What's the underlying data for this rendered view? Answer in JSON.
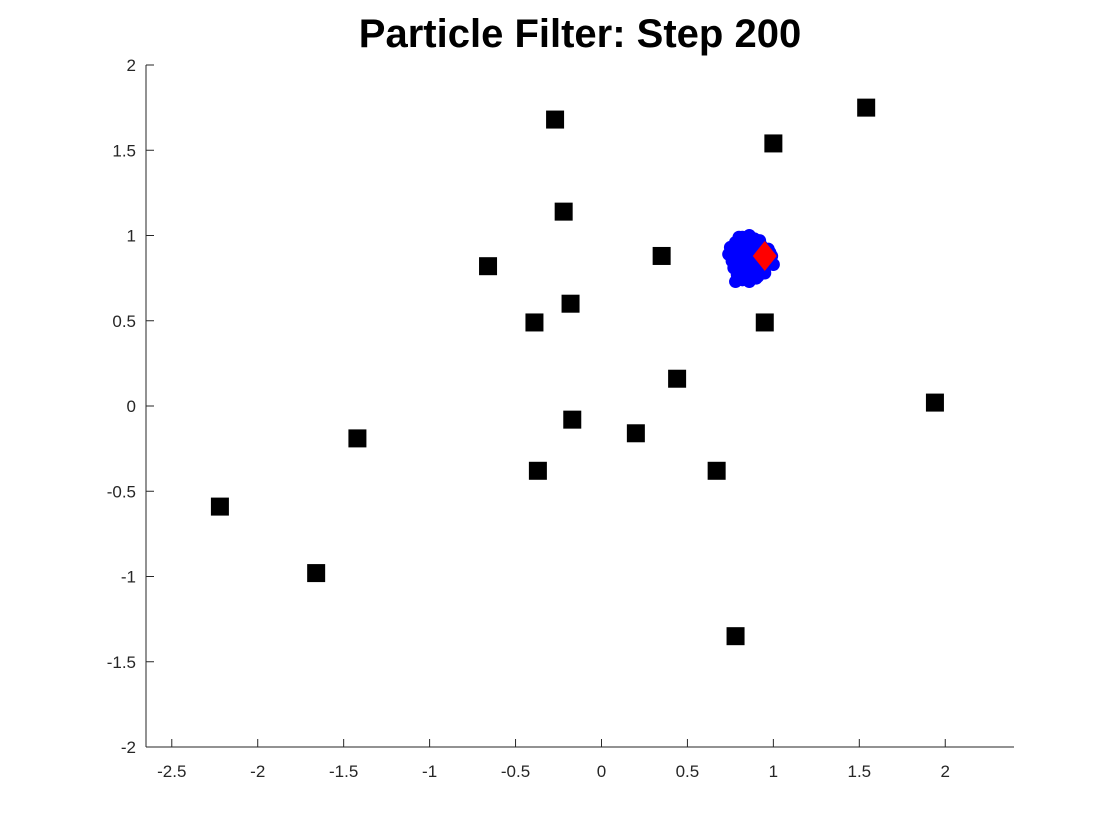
{
  "chart_data": {
    "type": "scatter",
    "title": "Particle Filter: Step 200",
    "xlabel": "",
    "ylabel": "",
    "xlim": [
      -2.65,
      2.4
    ],
    "ylim": [
      -2,
      2
    ],
    "xticks": [
      -2.5,
      -2,
      -1.5,
      -1,
      -0.5,
      0,
      0.5,
      1,
      1.5,
      2
    ],
    "xtick_labels": [
      "-2.5",
      "-2",
      "-1.5",
      "-1",
      "-0.5",
      "0",
      "0.5",
      "1",
      "1.5",
      "2"
    ],
    "yticks": [
      -2,
      -1.5,
      -1,
      -0.5,
      0,
      0.5,
      1,
      1.5,
      2
    ],
    "ytick_labels": [
      "-2",
      "-1.5",
      "-1",
      "-0.5",
      "0",
      "0.5",
      "1",
      "1.5",
      "2"
    ],
    "grid": false,
    "series": [
      {
        "marker": "square",
        "color": "#000000",
        "points": [
          [
            -0.27,
            1.68
          ],
          [
            1.0,
            1.54
          ],
          [
            1.54,
            1.75
          ],
          [
            -0.22,
            1.14
          ],
          [
            -0.66,
            0.82
          ],
          [
            0.35,
            0.88
          ],
          [
            -0.18,
            0.6
          ],
          [
            -0.39,
            0.49
          ],
          [
            0.95,
            0.49
          ],
          [
            0.44,
            0.16
          ],
          [
            1.94,
            0.02
          ],
          [
            -1.42,
            -0.19
          ],
          [
            -0.17,
            -0.08
          ],
          [
            0.2,
            -0.16
          ],
          [
            -0.37,
            -0.38
          ],
          [
            0.67,
            -0.38
          ],
          [
            -2.22,
            -0.59
          ],
          [
            -1.66,
            -0.98
          ],
          [
            0.78,
            -1.35
          ]
        ]
      },
      {
        "marker": "circle",
        "color": "#0000ff",
        "points": [
          [
            0.78,
            0.96
          ],
          [
            0.82,
            0.99
          ],
          [
            0.86,
            1.0
          ],
          [
            0.89,
            0.98
          ],
          [
            0.75,
            0.93
          ],
          [
            0.79,
            0.92
          ],
          [
            0.83,
            0.94
          ],
          [
            0.87,
            0.95
          ],
          [
            0.9,
            0.93
          ],
          [
            0.93,
            0.94
          ],
          [
            0.97,
            0.92
          ],
          [
            0.74,
            0.89
          ],
          [
            0.77,
            0.88
          ],
          [
            0.81,
            0.89
          ],
          [
            0.84,
            0.9
          ],
          [
            0.88,
            0.9
          ],
          [
            0.92,
            0.89
          ],
          [
            0.95,
            0.88
          ],
          [
            0.98,
            0.9
          ],
          [
            0.76,
            0.85
          ],
          [
            0.8,
            0.84
          ],
          [
            0.83,
            0.86
          ],
          [
            0.87,
            0.85
          ],
          [
            0.91,
            0.84
          ],
          [
            0.94,
            0.85
          ],
          [
            0.97,
            0.83
          ],
          [
            1.0,
            0.83
          ],
          [
            0.77,
            0.81
          ],
          [
            0.81,
            0.8
          ],
          [
            0.85,
            0.81
          ],
          [
            0.89,
            0.8
          ],
          [
            0.93,
            0.8
          ],
          [
            0.79,
            0.77
          ],
          [
            0.83,
            0.76
          ],
          [
            0.87,
            0.77
          ],
          [
            0.91,
            0.76
          ],
          [
            0.95,
            0.78
          ],
          [
            0.78,
            0.73
          ],
          [
            0.82,
            0.74
          ],
          [
            0.86,
            0.73
          ],
          [
            0.9,
            0.75
          ],
          [
            0.8,
            0.99
          ],
          [
            0.85,
            0.96
          ],
          [
            0.92,
            0.97
          ],
          [
            0.99,
            0.88
          ]
        ]
      },
      {
        "marker": "diamond",
        "color": "#ff0000",
        "points": [
          [
            0.95,
            0.88
          ]
        ]
      }
    ]
  }
}
